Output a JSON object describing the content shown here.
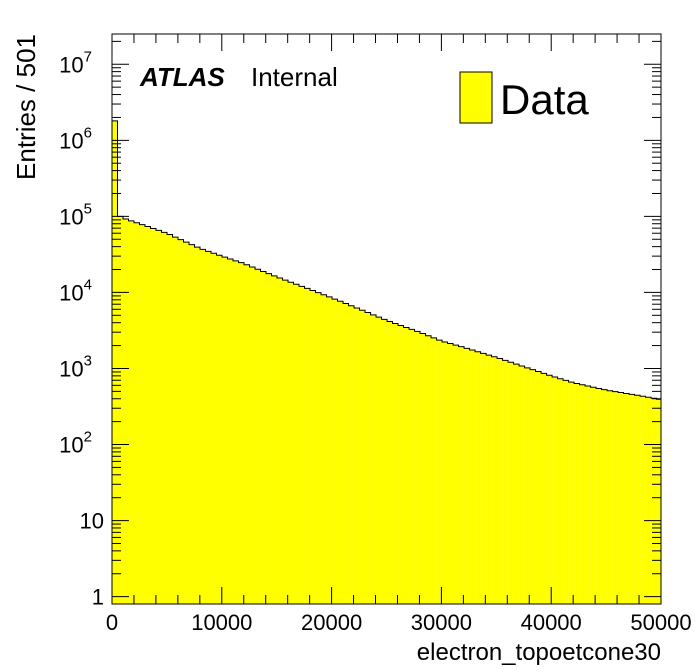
{
  "chart_data": {
    "type": "bar",
    "subtype": "histogram",
    "xlabel": "electron_topoetcone30",
    "ylabel": "Entries / 501",
    "xlim": [
      0,
      50000
    ],
    "ylim": [
      0.8,
      25000000
    ],
    "yscale": "log",
    "grid": false,
    "bin_width": 501,
    "fill_color": "#ffff00",
    "line_color": "#000000",
    "x_ticks": [
      0,
      10000,
      20000,
      30000,
      40000,
      50000
    ],
    "x_tick_labels": [
      "0",
      "10000",
      "20000",
      "30000",
      "40000",
      "50000"
    ],
    "y_ticks": [
      1,
      10,
      100,
      1000,
      10000,
      100000,
      1000000,
      10000000
    ],
    "y_tick_labels": [
      {
        "base": "1",
        "exp": ""
      },
      {
        "base": "10",
        "exp": ""
      },
      {
        "base": "10",
        "exp": "2"
      },
      {
        "base": "10",
        "exp": "3"
      },
      {
        "base": "10",
        "exp": "4"
      },
      {
        "base": "10",
        "exp": "5"
      },
      {
        "base": "10",
        "exp": "6"
      },
      {
        "base": "10",
        "exp": "7"
      }
    ],
    "annotation": {
      "bold": "ATLAS",
      "text": "Internal"
    },
    "legend": {
      "entries": [
        {
          "name": "Data",
          "color": "#ffff00"
        }
      ],
      "placement": "top-right"
    },
    "series": [
      {
        "name": "Data",
        "x_start": 0,
        "bin_width": 501,
        "first_bins": [
          1800000,
          100000
        ],
        "anchors": [
          [
            1000,
            95000
          ],
          [
            2000,
            85000
          ],
          [
            5000,
            60000
          ],
          [
            8000,
            38000
          ],
          [
            10000,
            30000
          ],
          [
            12000,
            24000
          ],
          [
            15000,
            16000
          ],
          [
            18000,
            11000
          ],
          [
            20000,
            8500
          ],
          [
            22000,
            6500
          ],
          [
            25000,
            4300
          ],
          [
            28000,
            3000
          ],
          [
            30000,
            2300
          ],
          [
            32000,
            1900
          ],
          [
            35000,
            1400
          ],
          [
            38000,
            1000
          ],
          [
            40000,
            800
          ],
          [
            42000,
            650
          ],
          [
            45000,
            520
          ],
          [
            48000,
            440
          ],
          [
            50000,
            390
          ]
        ]
      }
    ]
  }
}
